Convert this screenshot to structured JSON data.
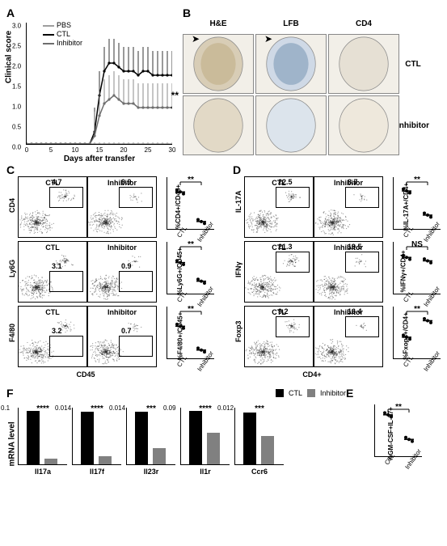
{
  "panelA": {
    "label": "A",
    "ylabel": "Clinical score",
    "xlabel": "Days after transfer",
    "yticks": [
      0,
      0.5,
      1.0,
      1.5,
      2.0,
      2.5,
      3.0
    ],
    "xticks": [
      0,
      5,
      10,
      15,
      20,
      25,
      30
    ],
    "legend": [
      {
        "name": "PBS",
        "color": "#9e9e9e",
        "shape": "circle"
      },
      {
        "name": "CTL",
        "color": "#000000",
        "shape": "square"
      },
      {
        "name": "Inhibitor",
        "color": "#6e6e6e",
        "shape": "triangle"
      }
    ],
    "series": {
      "PBS": {
        "color": "#9e9e9e",
        "y": [
          0,
          0,
          0,
          0,
          0,
          0,
          0,
          0,
          0,
          0,
          0,
          0,
          0,
          0,
          0,
          0,
          0,
          0,
          0,
          0,
          0,
          0,
          0,
          0,
          0,
          0,
          0,
          0,
          0,
          0,
          0
        ]
      },
      "CTL": {
        "color": "#000000",
        "y": [
          0,
          0,
          0,
          0,
          0,
          0,
          0,
          0,
          0,
          0,
          0,
          0,
          0,
          0,
          0.3,
          1.2,
          1.8,
          2.0,
          2.0,
          1.9,
          1.8,
          1.8,
          1.8,
          1.7,
          1.8,
          1.8,
          1.7,
          1.7,
          1.7,
          1.7,
          1.7
        ]
      },
      "Inhibitor": {
        "color": "#6e6e6e",
        "y": [
          0,
          0,
          0,
          0,
          0,
          0,
          0,
          0,
          0,
          0,
          0,
          0,
          0,
          0,
          0.2,
          0.7,
          1.0,
          1.1,
          1.2,
          1.1,
          1.0,
          1.0,
          1.0,
          0.9,
          0.9,
          0.9,
          0.9,
          0.9,
          0.9,
          0.9,
          0.9
        ]
      }
    },
    "significance": "**"
  },
  "panelB": {
    "label": "B",
    "headers": [
      "H&E",
      "LFB",
      "CD4"
    ],
    "rows": [
      "CTL",
      "Inhibitor"
    ]
  },
  "panelC": {
    "label": "C",
    "axis_x": "CD45",
    "subpanels": [
      {
        "axis_y": "CD4",
        "ctl_val": "4.7",
        "inh_val": "0.9",
        "dp_y": "%CD4+/CD45+",
        "ctl_mean": 5,
        "inh_mean": 1,
        "sig": "**",
        "ymax": 7
      },
      {
        "axis_y": "Ly6G",
        "ctl_val": "3.1",
        "inh_val": "0.9",
        "dp_y": "%Ly6G+/CD45+",
        "ctl_mean": 3,
        "inh_mean": 1.2,
        "sig": "**",
        "ymax": 5
      },
      {
        "axis_y": "F4/80",
        "ctl_val": "3.2",
        "inh_val": "0.7",
        "dp_y": "%F4/80+/CD45+",
        "ctl_mean": 3.1,
        "inh_mean": 0.8,
        "sig": "**",
        "ymax": 5
      }
    ]
  },
  "panelD": {
    "label": "D",
    "axis_x": "CD4+",
    "subpanels": [
      {
        "axis_y": "IL-17A",
        "ctl_val": "22.5",
        "inh_val": "8.7",
        "dp_y": "%IL-17A+/CD4+",
        "ctl_mean": 22,
        "inh_mean": 8,
        "sig": "**",
        "ymax": 30
      },
      {
        "axis_y": "IFNγ",
        "ctl_val": "21.3",
        "inh_val": "19.5",
        "dp_y": "%IFNγ+/CD4+",
        "ctl_mean": 21,
        "inh_mean": 19,
        "sig": "NS",
        "ymax": 30
      },
      {
        "axis_y": "Foxp3",
        "ctl_val": "9.2",
        "inh_val": "16.4",
        "dp_y": "%Fxop3+/CD4+",
        "ctl_mean": 9,
        "inh_mean": 16,
        "sig": "**",
        "ymax": 22
      }
    ]
  },
  "panelE": {
    "label": "E",
    "dp_y": "%GM-CSF+IL-17+",
    "ctl_mean": 32,
    "inh_mean": 13,
    "sig": "**",
    "ymax": 40
  },
  "panelF": {
    "label": "F",
    "ylabel": "mRNA level",
    "legend": [
      {
        "name": "CTL",
        "color": "#000000"
      },
      {
        "name": "Inhibitor",
        "color": "#808080"
      }
    ],
    "bars": [
      {
        "gene": "Il17a",
        "ctl": 0.095,
        "inh": 0.01,
        "ymax": 0.1,
        "sig": "****"
      },
      {
        "gene": "Il17f",
        "ctl": 0.013,
        "inh": 0.002,
        "ymax": 0.014,
        "sig": "****"
      },
      {
        "gene": "Il23r",
        "ctl": 0.013,
        "inh": 0.004,
        "ymax": 0.014,
        "sig": "***"
      },
      {
        "gene": "Il1r",
        "ctl": 0.085,
        "inh": 0.05,
        "ymax": 0.09,
        "sig": "****"
      },
      {
        "gene": "Ccr6",
        "ctl": 0.011,
        "inh": 0.006,
        "ymax": 0.012,
        "sig": "***"
      }
    ]
  },
  "colors": {
    "ctl_bar": "#000000",
    "inh_bar": "#808080",
    "scatter_dot": "#3a3a3a"
  }
}
